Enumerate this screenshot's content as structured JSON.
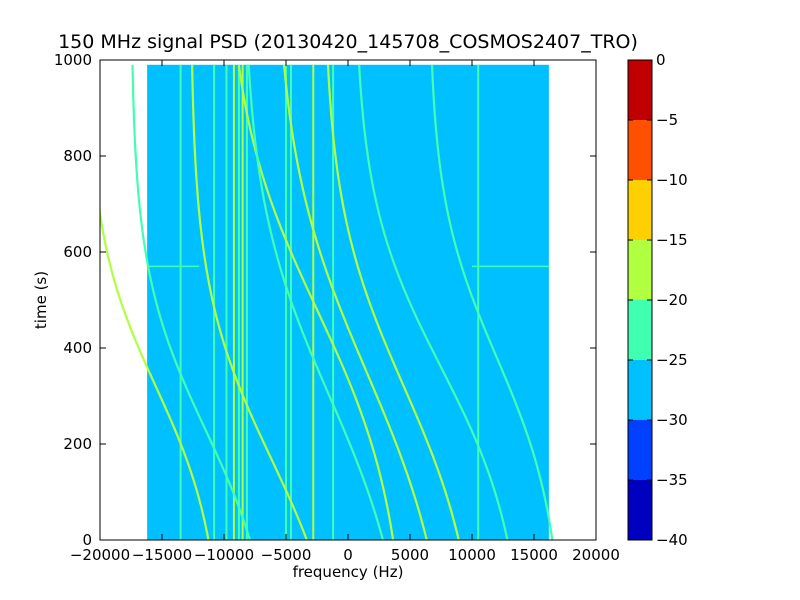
{
  "chart_data": {
    "type": "heatmap",
    "title": "150 MHz signal PSD (20130420_145708_COSMOS2407_TRO)",
    "xlabel": "frequency (Hz)",
    "ylabel": "time (s)",
    "xlim": [
      -20000,
      20000
    ],
    "ylim": [
      0,
      1000
    ],
    "x_ticks": [
      -20000,
      -15000,
      -10000,
      -5000,
      0,
      5000,
      10000,
      15000,
      20000
    ],
    "y_ticks": [
      0,
      200,
      400,
      600,
      800,
      1000
    ],
    "data_extent": {
      "x": [
        -16200,
        16200
      ],
      "y": [
        0,
        990
      ]
    },
    "background_level": -27.5,
    "grid": false,
    "colorbar": {
      "levels": [
        -40,
        -35,
        -30,
        -25,
        -20,
        -15,
        -10,
        -5,
        0
      ],
      "colors": [
        "#0000c0",
        "#0040ff",
        "#00c0ff",
        "#40ffb0",
        "#b0ff40",
        "#ffd000",
        "#ff5000",
        "#c00000"
      ],
      "tick_labels": [
        "0",
        "−5",
        "−10",
        "−15",
        "−20",
        "−25",
        "−30",
        "−35",
        "−40"
      ]
    },
    "vertical_lines": [
      {
        "freq": -9800,
        "level": -22
      },
      {
        "freq": -9200,
        "level": -17
      },
      {
        "freq": -8800,
        "level": -22
      },
      {
        "freq": -8500,
        "level": -17
      },
      {
        "freq": -8150,
        "level": -22
      },
      {
        "freq": -5000,
        "level": -22
      },
      {
        "freq": -4600,
        "level": -22
      },
      {
        "freq": -2800,
        "level": -17
      },
      {
        "freq": -1200,
        "level": -22
      },
      {
        "freq": 10500,
        "level": -22
      },
      {
        "freq": -13500,
        "level": -25
      },
      {
        "freq": -10800,
        "level": -25
      }
    ],
    "horizontal_lines": [
      {
        "time": 570,
        "freq_range": [
          -16200,
          -12000
        ],
        "level": -22
      },
      {
        "time": 570,
        "freq_range": [
          10000,
          16200
        ],
        "level": -22
      }
    ],
    "doppler_tracks": [
      {
        "f_center": -15500,
        "t_center": 320,
        "slope": 3.2,
        "amplitude": 5500,
        "level": -17
      },
      {
        "f_center": -11500,
        "t_center": 230,
        "slope": 3.0,
        "amplitude": 6000,
        "level": -22
      },
      {
        "f_center": -6200,
        "t_center": 170,
        "slope": 2.8,
        "amplitude": 6500,
        "level": -17
      },
      {
        "f_center": -2500,
        "t_center": 480,
        "slope": 2.4,
        "amplitude": 7500,
        "level": -17
      },
      {
        "f_center": -1500,
        "t_center": 300,
        "slope": 2.4,
        "amplitude": 7000,
        "level": -22
      },
      {
        "f_center": 1500,
        "t_center": 350,
        "slope": 2.2,
        "amplitude": 7500,
        "level": -17
      },
      {
        "f_center": 4500,
        "t_center": 320,
        "slope": 2.6,
        "amplitude": 6500,
        "level": -17
      },
      {
        "f_center": 7500,
        "t_center": 360,
        "slope": 2.8,
        "amplitude": 7000,
        "level": -22
      },
      {
        "f_center": 12000,
        "t_center": 380,
        "slope": 3.0,
        "amplitude": 5500,
        "level": -22
      }
    ]
  }
}
